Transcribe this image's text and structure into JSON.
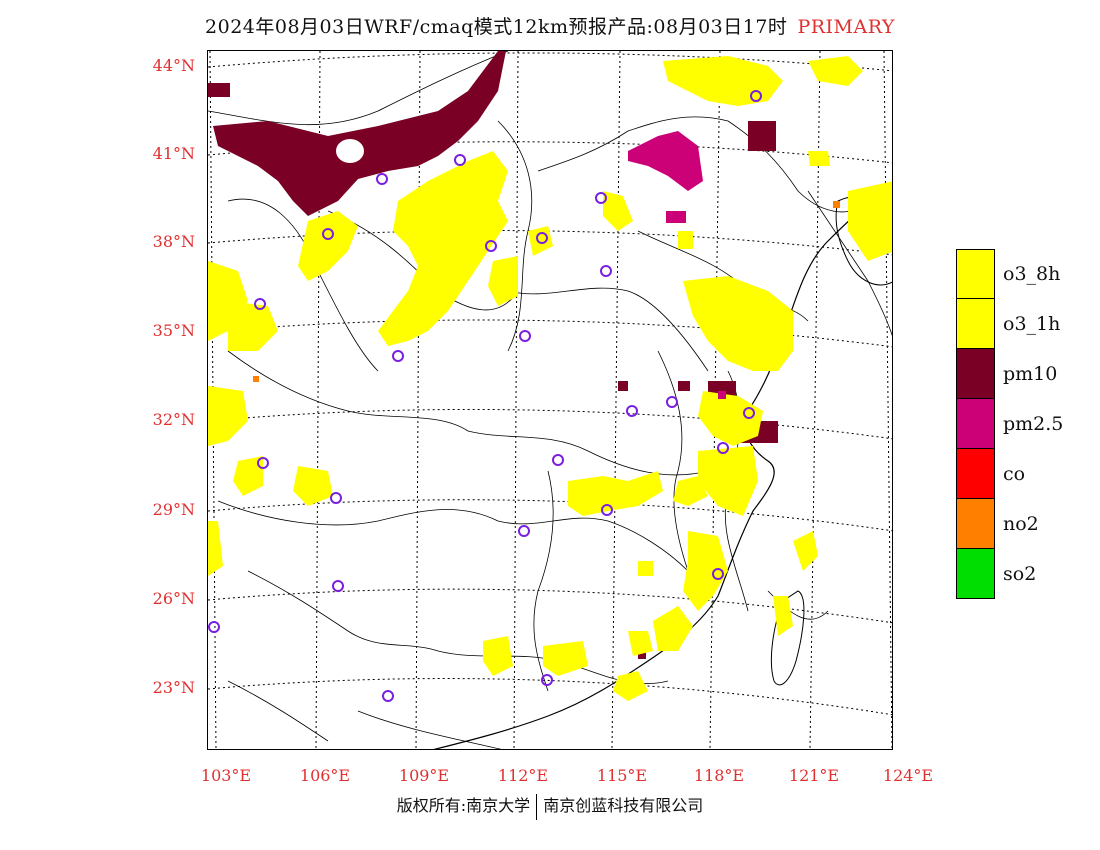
{
  "header": {
    "title": "2024年08月03日WRF/cmaq模式12km预报产品:08月03日17时",
    "tag": "PRIMARY",
    "tag_color": "#e03030"
  },
  "axes": {
    "lat_labels": [
      "44°N",
      "41°N",
      "38°N",
      "35°N",
      "32°N",
      "29°N",
      "26°N",
      "23°N"
    ],
    "lon_labels": [
      "103°E",
      "106°E",
      "109°E",
      "112°E",
      "115°E",
      "118°E",
      "121°E",
      "124°E"
    ],
    "label_color": "#e03030"
  },
  "legend": {
    "items": [
      {
        "label": "o3_8h",
        "color": "#ffff00"
      },
      {
        "label": "o3_1h",
        "color": "#ffff00"
      },
      {
        "label": "pm10",
        "color": "#7a0025"
      },
      {
        "label": "pm2.5",
        "color": "#cc0077"
      },
      {
        "label": "co",
        "color": "#ff0000"
      },
      {
        "label": "no2",
        "color": "#ff7f00"
      },
      {
        "label": "so2",
        "color": "#00dd00"
      }
    ]
  },
  "footer": {
    "left": "版权所有:南京大学",
    "right": "南京创蓝科技有限公司"
  }
}
